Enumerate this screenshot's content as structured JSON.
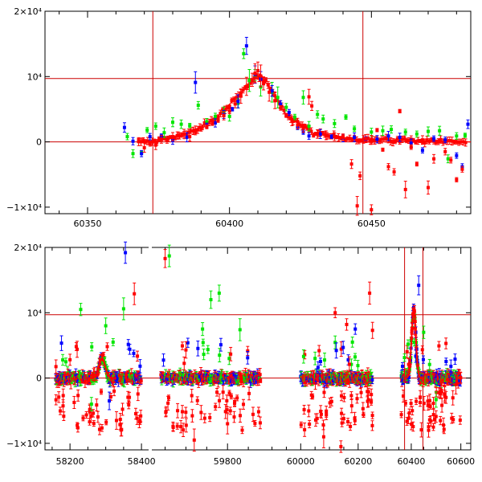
{
  "colors": {
    "green": "#00e600",
    "blue": "#0000ff",
    "red": "#ff0000",
    "refline": "#cc0000"
  },
  "chart_data": [
    {
      "type": "scatter",
      "panel": "top",
      "xlim": [
        60335,
        60485
      ],
      "ylim": [
        -11000,
        20000
      ],
      "xticks": [
        {
          "v": 60350,
          "label": "60350"
        },
        {
          "v": 60400,
          "label": "60400"
        },
        {
          "v": 60450,
          "label": "60450"
        }
      ],
      "yticks": [
        {
          "v": 20000,
          "label": "2×10⁴"
        },
        {
          "v": 10000,
          "label": "10⁴"
        },
        {
          "v": 0,
          "label": "0"
        },
        {
          "v": -10000,
          "label": "−1×10⁴"
        }
      ],
      "hlines": [
        0,
        9700
      ],
      "vlines": [
        60373,
        60447
      ],
      "model_curve": [
        [
          60373,
          0
        ],
        [
          60385,
          1200
        ],
        [
          60395,
          3500
        ],
        [
          60405,
          8000
        ],
        [
          60410,
          10200
        ],
        [
          60413,
          9000
        ],
        [
          60420,
          4200
        ],
        [
          60430,
          1200
        ],
        [
          60445,
          400
        ],
        [
          60485,
          0
        ]
      ],
      "series": [
        {
          "color": "green",
          "points": [
            [
              60364,
              800
            ],
            [
              60366,
              -1800
            ],
            [
              60369,
              -1600
            ],
            [
              60371,
              1800
            ],
            [
              60374,
              2400
            ],
            [
              60377,
              1400
            ],
            [
              60380,
              3000
            ],
            [
              60383,
              2700
            ],
            [
              60386,
              2500
            ],
            [
              60389,
              5600
            ],
            [
              60392,
              3100
            ],
            [
              60395,
              3900
            ],
            [
              60398,
              4600
            ],
            [
              60400,
              3900
            ],
            [
              60403,
              5900
            ],
            [
              60405,
              13500
            ],
            [
              60407,
              9400
            ],
            [
              60409,
              10200
            ],
            [
              60411,
              8400
            ],
            [
              60415,
              7600
            ],
            [
              60417,
              6800
            ],
            [
              60420,
              5300
            ],
            [
              60423,
              3800
            ],
            [
              60426,
              6800
            ],
            [
              60428,
              2400
            ],
            [
              60431,
              4200
            ],
            [
              60433,
              3500
            ],
            [
              60437,
              2800
            ],
            [
              60441,
              3800
            ],
            [
              60444,
              2000
            ],
            [
              60450,
              1500
            ],
            [
              60454,
              1700
            ],
            [
              60457,
              1900
            ],
            [
              60462,
              1500
            ],
            [
              60466,
              1200
            ],
            [
              60470,
              1600
            ],
            [
              60474,
              1700
            ],
            [
              60477,
              -2600
            ],
            [
              60480,
              900
            ],
            [
              60483,
              1000
            ]
          ]
        },
        {
          "color": "blue",
          "points": [
            [
              60363,
              2200
            ],
            [
              60366,
              100
            ],
            [
              60369,
              -1800
            ],
            [
              60372,
              800
            ],
            [
              60376,
              900
            ],
            [
              60380,
              200
            ],
            [
              60385,
              700
            ],
            [
              60388,
              9100
            ],
            [
              60392,
              2500
            ],
            [
              60395,
              2900
            ],
            [
              60398,
              4200
            ],
            [
              60401,
              5000
            ],
            [
              60403,
              6200
            ],
            [
              60406,
              14700
            ],
            [
              60409,
              10300
            ],
            [
              60411,
              9600
            ],
            [
              60415,
              7800
            ],
            [
              60418,
              5800
            ],
            [
              60421,
              4500
            ],
            [
              60424,
              2300
            ],
            [
              60426,
              1500
            ],
            [
              60428,
              900
            ],
            [
              60432,
              1200
            ],
            [
              60436,
              800
            ],
            [
              60440,
              600
            ],
            [
              60444,
              700
            ],
            [
              60448,
              500
            ],
            [
              60452,
              400
            ],
            [
              60456,
              900
            ],
            [
              60460,
              700
            ],
            [
              60464,
              -200
            ],
            [
              60468,
              -1300
            ],
            [
              60472,
              500
            ],
            [
              60476,
              300
            ],
            [
              60480,
              -2100
            ],
            [
              60482,
              -3800
            ],
            [
              60484,
              2700
            ]
          ]
        },
        {
          "color": "red",
          "points": [
            [
              60368,
              200
            ],
            [
              60370,
              -900
            ],
            [
              60372,
              -300
            ],
            [
              60374,
              -500
            ],
            [
              60376,
              400
            ],
            [
              60378,
              300
            ],
            [
              60380,
              800
            ],
            [
              60382,
              1000
            ],
            [
              60384,
              1200
            ],
            [
              60386,
              800
            ],
            [
              60388,
              1500
            ],
            [
              60390,
              2000
            ],
            [
              60392,
              2300
            ],
            [
              60394,
              2800
            ],
            [
              60396,
              3300
            ],
            [
              60398,
              4000
            ],
            [
              60400,
              4700
            ],
            [
              60402,
              5800
            ],
            [
              60404,
              7000
            ],
            [
              60406,
              8500
            ],
            [
              60408,
              9500
            ],
            [
              60409,
              10500
            ],
            [
              60410,
              10900
            ],
            [
              60411,
              10100
            ],
            [
              60412,
              8900
            ],
            [
              60414,
              7600
            ],
            [
              60416,
              6300
            ],
            [
              60418,
              5200
            ],
            [
              60420,
              4000
            ],
            [
              60422,
              3200
            ],
            [
              60424,
              2600
            ],
            [
              60426,
              2100
            ],
            [
              60428,
              6900
            ],
            [
              60429,
              5500
            ],
            [
              60431,
              1200
            ],
            [
              60434,
              1000
            ],
            [
              60437,
              800
            ],
            [
              60440,
              700
            ],
            [
              60443,
              -3400
            ],
            [
              60446,
              -5200
            ],
            [
              60448,
              500
            ],
            [
              60450,
              300
            ],
            [
              60452,
              1800
            ],
            [
              60454,
              -1200
            ],
            [
              60456,
              -3800
            ],
            [
              60458,
              -4600
            ],
            [
              60460,
              4700
            ],
            [
              60462,
              -7300
            ],
            [
              60464,
              -800
            ],
            [
              60466,
              -3400
            ],
            [
              60468,
              300
            ],
            [
              60470,
              -7000
            ],
            [
              60472,
              -2600
            ],
            [
              60474,
              100
            ],
            [
              60476,
              -1500
            ],
            [
              60478,
              -2800
            ],
            [
              60480,
              -5800
            ],
            [
              60482,
              -4200
            ],
            [
              60445,
              -9800
            ],
            [
              60450,
              -10400
            ]
          ]
        }
      ]
    },
    {
      "type": "scatter",
      "panel": "bottom",
      "ylim": [
        -11000,
        20000
      ],
      "segments": [
        {
          "xlim": [
            58130,
            58420
          ],
          "xticks": [
            {
              "v": 58200,
              "label": "58200"
            },
            {
              "v": 58400,
              "label": "58400"
            }
          ]
        },
        {
          "xlim": [
            59620,
            59900
          ],
          "xticks": [
            {
              "v": 59800,
              "label": "59800"
            }
          ]
        },
        {
          "xlim": [
            59890,
            60290
          ],
          "xticks": [
            {
              "v": 60000,
              "label": "60000"
            },
            {
              "v": 60200,
              "label": "60200"
            }
          ]
        },
        {
          "xlim": [
            60290,
            60640
          ],
          "xticks": [
            {
              "v": 60400,
              "label": "60400"
            },
            {
              "v": 60600,
              "label": "60600"
            }
          ]
        }
      ],
      "yticks": [
        {
          "v": 20000,
          "label": "2×10⁴"
        },
        {
          "v": 10000,
          "label": "10⁴"
        },
        {
          "v": 0,
          "label": "0"
        },
        {
          "v": -10000,
          "label": "−1×10⁴"
        }
      ],
      "hlines": [
        0,
        9700
      ],
      "vlines": [
        60373,
        60447
      ],
      "clusters": [
        {
          "segment": 0,
          "x0": 58160,
          "x1": 58400,
          "peaks": [
            {
              "x": 58290,
              "y": 3000
            }
          ],
          "outliers": [
            [
              58230,
              10500,
              "green"
            ],
            [
              58300,
              8000,
              "green"
            ],
            [
              58350,
              10600,
              "green"
            ],
            [
              58355,
              19200,
              "blue"
            ],
            [
              58380,
              12900,
              "red"
            ],
            [
              58220,
              4400,
              "red"
            ],
            [
              58330,
              -6500,
              "red"
            ],
            [
              58260,
              -4000,
              "green"
            ],
            [
              58310,
              -3500,
              "blue"
            ],
            [
              58200,
              2800,
              "red"
            ]
          ]
        },
        {
          "segment": 1,
          "x0": 59640,
          "x1": 59880,
          "peaks": [],
          "outliers": [
            [
              59650,
              18300,
              "red"
            ],
            [
              59660,
              18700,
              "green"
            ],
            [
              59760,
              12000,
              "green"
            ],
            [
              59780,
              13000,
              "green"
            ],
            [
              59740,
              7500,
              "green"
            ],
            [
              59700,
              4300,
              "red"
            ],
            [
              59720,
              -9500,
              "red"
            ],
            [
              59800,
              -7000,
              "red"
            ],
            [
              59830,
              7400,
              "green"
            ],
            [
              59680,
              -5000,
              "red"
            ]
          ]
        },
        {
          "segment": 2,
          "x0": 60000,
          "x1": 60250,
          "peaks": [],
          "outliers": [
            [
              60010,
              3300,
              "green"
            ],
            [
              60120,
              10000,
              "red"
            ],
            [
              60160,
              8200,
              "red"
            ],
            [
              60190,
              7500,
              "blue"
            ],
            [
              60240,
              13000,
              "red"
            ],
            [
              60250,
              7300,
              "red"
            ],
            [
              60080,
              -9000,
              "red"
            ],
            [
              60140,
              -10500,
              "red"
            ],
            [
              60050,
              3000,
              "green"
            ],
            [
              60180,
              5500,
              "green"
            ]
          ]
        },
        {
          "segment": 3,
          "x0": 60360,
          "x1": 60600,
          "peaks": [
            {
              "x": 60410,
              "y": 10500
            }
          ],
          "outliers": [
            [
              60430,
              14200,
              "blue"
            ],
            [
              60470,
              -8000,
              "red"
            ],
            [
              60490,
              -5600,
              "red"
            ],
            [
              60520,
              -2000,
              "red"
            ],
            [
              60540,
              5300,
              "red"
            ],
            [
              60560,
              1800,
              "blue"
            ],
            [
              60500,
              -3300,
              "green"
            ],
            [
              60450,
              7000,
              "green"
            ],
            [
              60530,
              -7200,
              "red"
            ],
            [
              60580,
              -1000,
              "red"
            ]
          ]
        }
      ]
    }
  ]
}
